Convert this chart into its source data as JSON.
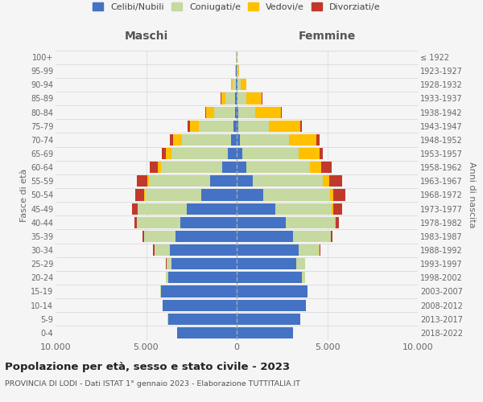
{
  "age_groups": [
    "0-4",
    "5-9",
    "10-14",
    "15-19",
    "20-24",
    "25-29",
    "30-34",
    "35-39",
    "40-44",
    "45-49",
    "50-54",
    "55-59",
    "60-64",
    "65-69",
    "70-74",
    "75-79",
    "80-84",
    "85-89",
    "90-94",
    "95-99",
    "100+"
  ],
  "birth_years": [
    "2018-2022",
    "2013-2017",
    "2008-2012",
    "2003-2007",
    "1998-2002",
    "1993-1997",
    "1988-1992",
    "1983-1987",
    "1978-1982",
    "1973-1977",
    "1968-1972",
    "1963-1967",
    "1958-1962",
    "1953-1957",
    "1948-1952",
    "1943-1947",
    "1938-1942",
    "1933-1937",
    "1928-1932",
    "1923-1927",
    "≤ 1922"
  ],
  "males": {
    "celibi": [
      3300,
      3800,
      4100,
      4200,
      3800,
      3600,
      3700,
      3400,
      3100,
      2750,
      1950,
      1450,
      780,
      480,
      320,
      180,
      100,
      70,
      50,
      25,
      15
    ],
    "coniugati": [
      1,
      2,
      5,
      20,
      90,
      280,
      850,
      1700,
      2400,
      2700,
      3100,
      3400,
      3400,
      3100,
      2700,
      1900,
      1150,
      550,
      180,
      55,
      25
    ],
    "vedovi": [
      0,
      0,
      0,
      0,
      0,
      1,
      3,
      8,
      15,
      35,
      70,
      90,
      180,
      320,
      480,
      520,
      420,
      230,
      75,
      18,
      4
    ],
    "divorziati": [
      0,
      1,
      1,
      3,
      8,
      15,
      90,
      70,
      130,
      280,
      460,
      560,
      420,
      230,
      180,
      130,
      70,
      25,
      8,
      4,
      1
    ]
  },
  "females": {
    "nubili": [
      3100,
      3500,
      3800,
      3900,
      3600,
      3300,
      3400,
      3100,
      2700,
      2150,
      1450,
      870,
      530,
      330,
      185,
      95,
      75,
      55,
      35,
      20,
      12
    ],
    "coniugate": [
      0,
      1,
      4,
      28,
      190,
      470,
      1150,
      2100,
      2700,
      3100,
      3700,
      3900,
      3500,
      3100,
      2700,
      1700,
      950,
      470,
      185,
      55,
      25
    ],
    "vedove": [
      0,
      0,
      0,
      1,
      1,
      4,
      8,
      18,
      45,
      90,
      185,
      320,
      650,
      1150,
      1500,
      1700,
      1400,
      850,
      320,
      45,
      8
    ],
    "divorziate": [
      0,
      0,
      1,
      3,
      8,
      25,
      70,
      90,
      185,
      470,
      650,
      750,
      560,
      185,
      185,
      90,
      45,
      25,
      8,
      4,
      1
    ]
  },
  "colors": {
    "celibi": "#4472c4",
    "coniugati": "#c5d9a0",
    "vedovi": "#ffc000",
    "divorziati": "#c0392b"
  },
  "title": "Popolazione per età, sesso e stato civile - 2023",
  "subtitle": "PROVINCIA DI LODI - Dati ISTAT 1° gennaio 2023 - Elaborazione TUTTITALIA.IT",
  "xlabel_left": "Maschi",
  "xlabel_right": "Femmine",
  "ylabel_left": "Fasce di età",
  "ylabel_right": "Anni di nascita",
  "xlim": 10000,
  "legend_labels": [
    "Celibi/Nubili",
    "Coniugati/e",
    "Vedovi/e",
    "Divorziati/e"
  ],
  "background_color": "#f5f5f5"
}
